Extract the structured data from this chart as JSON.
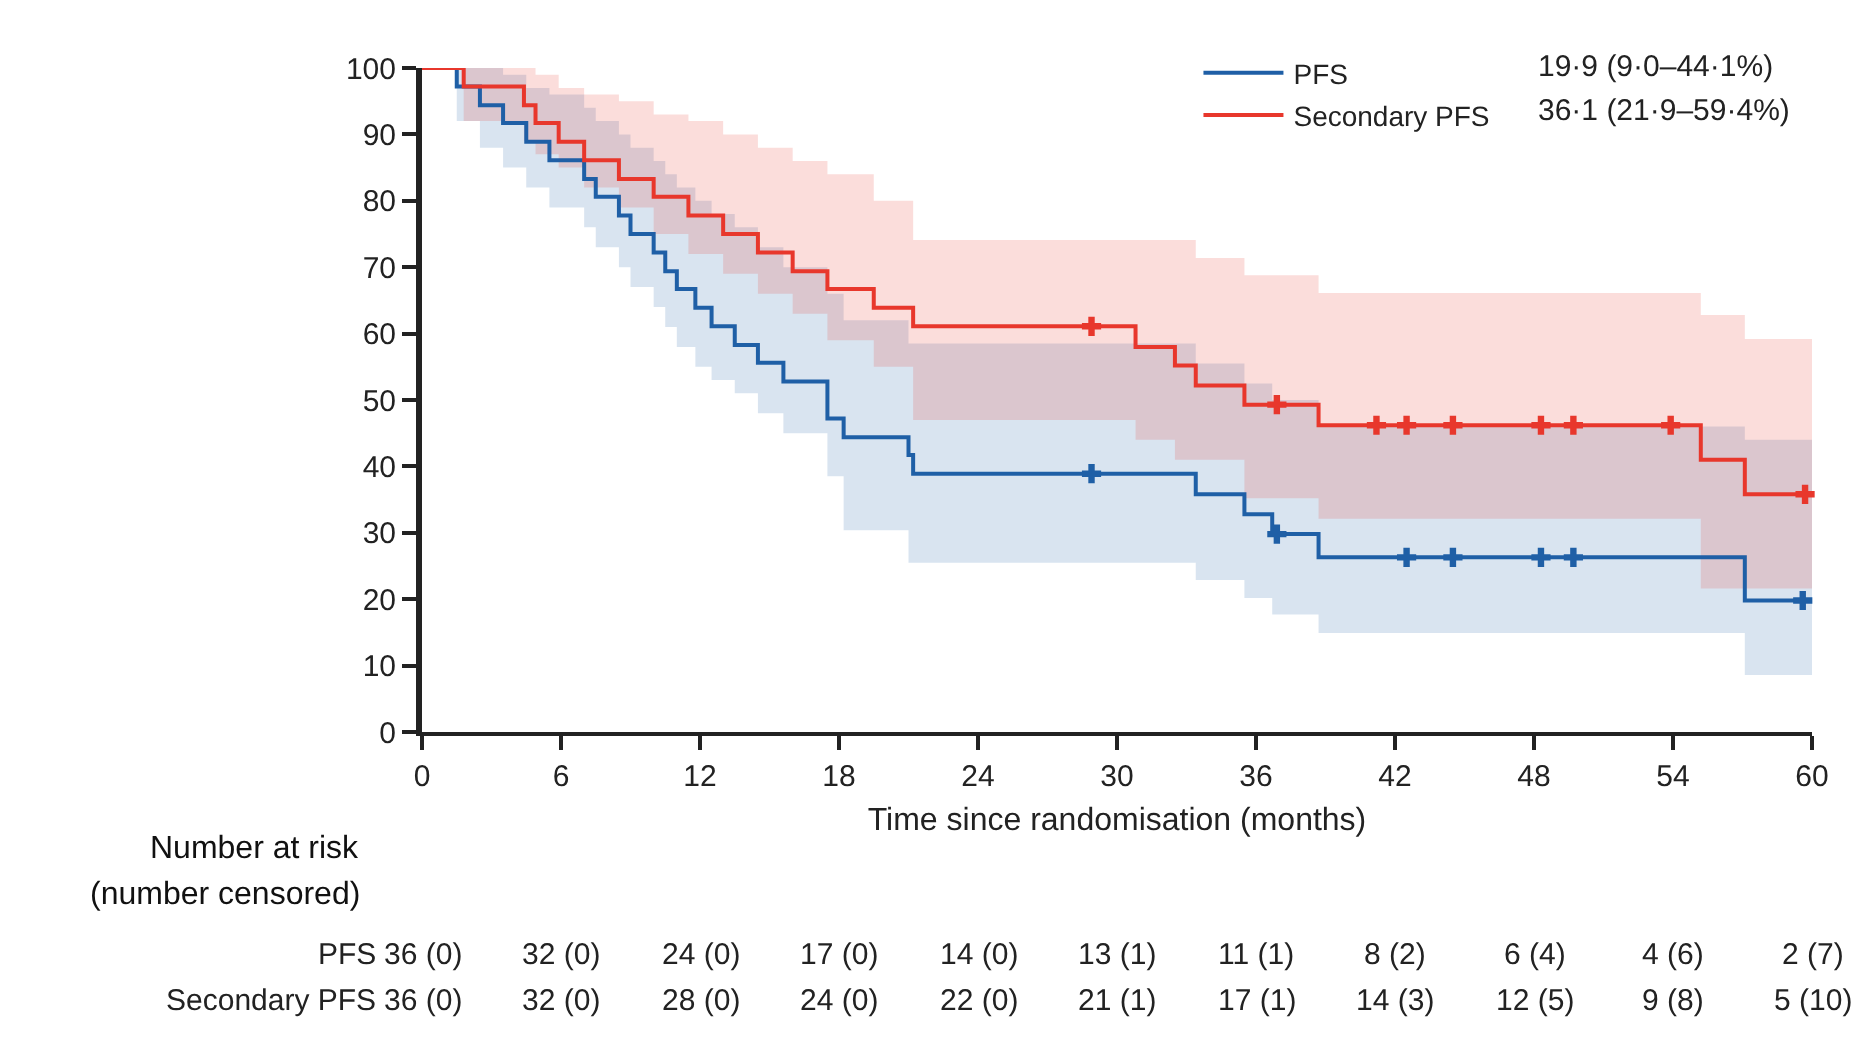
{
  "chart_data": {
    "type": "step",
    "xlabel": "Time since randomisation (months)",
    "xlim": [
      0,
      60
    ],
    "xticks": [
      0,
      6,
      12,
      18,
      24,
      30,
      36,
      42,
      48,
      54,
      60
    ],
    "ylim": [
      0,
      100
    ],
    "yticks": [
      0,
      10,
      20,
      30,
      40,
      50,
      60,
      70,
      80,
      90,
      100
    ],
    "grid": false,
    "legend": "top right",
    "line_style": "solid",
    "series": [
      {
        "name": "PFS",
        "marker": "none",
        "color": "#1f5fa6",
        "x": [
          0,
          1.5,
          2.5,
          3.5,
          4.5,
          5.5,
          7,
          7.5,
          8.5,
          9,
          10,
          10.5,
          11,
          11.8,
          12.5,
          13.5,
          14.5,
          15.6,
          17.5,
          18.2,
          21.0,
          21.2,
          33.4,
          35.5,
          36.7,
          38.7,
          57.1,
          60
        ],
        "values": [
          100,
          97.2,
          94.4,
          91.7,
          88.9,
          86.1,
          83.3,
          80.6,
          77.8,
          75.0,
          72.2,
          69.4,
          66.7,
          63.9,
          61.1,
          58.3,
          55.6,
          52.8,
          47.2,
          44.4,
          41.7,
          38.9,
          35.8,
          32.8,
          29.8,
          26.3,
          19.8,
          19.8
        ],
        "lower": [
          100,
          92,
          88,
          85,
          82,
          79,
          76,
          73,
          70,
          67,
          64,
          61,
          58,
          55,
          53,
          51,
          48,
          45,
          38.5,
          30.4,
          25.5,
          25.5,
          22.9,
          20.2,
          17.7,
          14.9,
          8.6,
          8.6
        ],
        "upper": [
          100,
          100,
          100,
          99,
          97,
          96,
          94,
          92,
          90,
          88,
          86,
          84,
          82,
          80,
          78,
          76,
          73,
          70,
          66,
          62,
          58.5,
          58.5,
          55.5,
          52.5,
          50.0,
          46.0,
          44.0,
          44.0
        ]
      },
      {
        "name": "Secondary PFS",
        "marker": "none",
        "color": "#e8372c",
        "x": [
          0,
          1.8,
          4.4,
          4.9,
          5.9,
          7,
          8.5,
          10,
          11.5,
          13,
          14.5,
          16,
          17.5,
          19.5,
          21.2,
          30.8,
          32.5,
          33.4,
          35.5,
          38.7,
          55.2,
          57.1,
          60
        ],
        "values": [
          100,
          97.2,
          94.4,
          91.7,
          88.9,
          86.1,
          83.3,
          80.6,
          77.8,
          75,
          72.2,
          69.4,
          66.7,
          63.9,
          61.1,
          58.0,
          55.2,
          52.2,
          49.3,
          46.2,
          41.0,
          35.8,
          35.8
        ],
        "lower": [
          100,
          92,
          89,
          87,
          85,
          82,
          79,
          75,
          72,
          69,
          66,
          63,
          59,
          55,
          47.0,
          44.0,
          41.0,
          41.0,
          35.2,
          32.1,
          21.6,
          21.6,
          21.6
        ],
        "upper": [
          100,
          100,
          100,
          99,
          97,
          96,
          95,
          93,
          92,
          90,
          88,
          86,
          84,
          80,
          74.1,
          74.1,
          74.1,
          71.4,
          68.8,
          66.1,
          62.8,
          59.2,
          59.2
        ]
      },
      {
        "type": "scatter",
        "marker": "cross",
        "color": "#1f5fa6",
        "x": [
          28.9,
          36.9,
          42.5,
          44.5,
          48.3,
          49.7,
          59.6
        ],
        "values": [
          38.9,
          29.8,
          26.3,
          26.3,
          26.3,
          26.3,
          19.8
        ]
      },
      {
        "type": "scatter",
        "marker": "cross",
        "color": "#e8372c",
        "x": [
          28.9,
          36.9,
          41.2,
          42.5,
          44.5,
          48.3,
          49.7,
          53.9,
          59.7
        ],
        "values": [
          61.1,
          49.3,
          46.2,
          46.2,
          46.2,
          46.2,
          46.2,
          46.2,
          35.8
        ]
      }
    ],
    "annotations": [
      "19·9 (9·0–44·1%)",
      "36·1 (21·9–59·4%)",
      "Number at risk",
      "(number censored)",
      "PFS",
      "36 (0)",
      "32 (0)",
      "24 (0)",
      "17 (0)",
      "14 (0)",
      "13 (1)",
      "11 (1)",
      "8 (2)",
      "6 (4)",
      "4 (6)",
      "2 (7)",
      "Secondary PFS",
      "36 (0)",
      "32 (0)",
      "28 (0)",
      "24 (0)",
      "22 (0)",
      "21 (1)",
      "17 (1)",
      "14 (3)",
      "12 (5)",
      "9 (8)",
      "5 (10)"
    ]
  }
}
